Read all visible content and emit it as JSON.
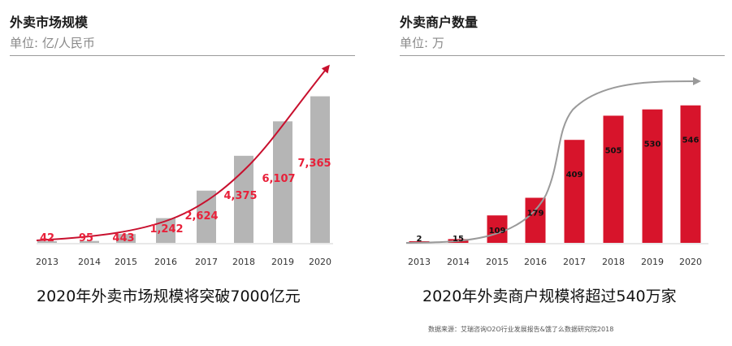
{
  "left_panel": {
    "title": "外卖市场规模",
    "unit": "单位: 亿/人民币",
    "caption": "2020年外卖市场规模将突破7000亿元"
  },
  "right_panel": {
    "title": "外卖商户数量",
    "unit": "单位: 万",
    "caption": "2020年外卖商户规模将超过540万家"
  },
  "source": "数据来源：艾瑞咨询O2O行业发展报告&饿了么数据研究院2018",
  "colors": {
    "bar_gray": "#b5b5b5",
    "bar_red": "#d7142b",
    "curve_red": "#c8102e",
    "curve_gray": "#9a9a9a",
    "label_red": "#e8213a"
  },
  "chart_data": [
    {
      "type": "bar",
      "categories": [
        "2013",
        "2014",
        "2015",
        "2016",
        "2017",
        "2018",
        "2019",
        "2020"
      ],
      "values": [
        42,
        95,
        443,
        1242,
        2624,
        4375,
        6107,
        7365
      ],
      "value_labels": [
        "42",
        "95",
        "443",
        "1,242",
        "2,624",
        "4,375",
        "6,107",
        "7,365"
      ],
      "ylim": [
        0,
        8000
      ],
      "trend_arrow": true
    },
    {
      "type": "bar",
      "categories": [
        "2013",
        "2014",
        "2015",
        "2016",
        "2017",
        "2018",
        "2019",
        "2020"
      ],
      "values": [
        2,
        15,
        109,
        179,
        409,
        505,
        530,
        546
      ],
      "value_labels": [
        "2",
        "15",
        "109",
        "179",
        "409",
        "505",
        "530",
        "546"
      ],
      "ylim": [
        0,
        600
      ],
      "trend_arrow": true
    }
  ]
}
